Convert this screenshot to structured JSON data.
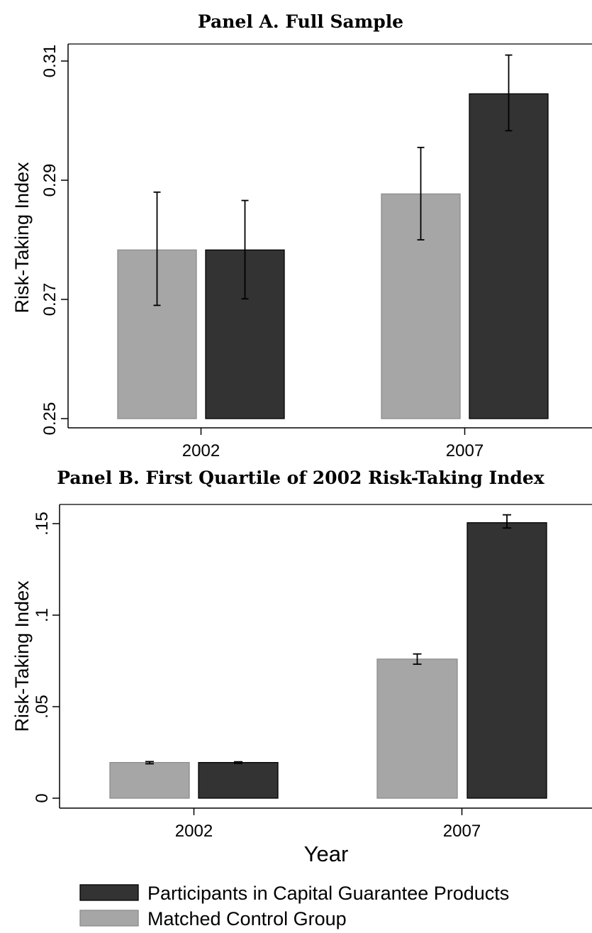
{
  "colors": {
    "participants": "#333333",
    "control": "#a6a6a6",
    "control_edge": "#8c8c8c",
    "axis": "#000000"
  },
  "legend": {
    "participants_label": "Participants in Capital Guarantee Products",
    "control_label": "Matched Control Group"
  },
  "chart_data": [
    {
      "type": "bar",
      "title": "Panel A. Full Sample",
      "ylabel": "Risk-Taking Index",
      "xlabel": "",
      "categories": [
        "2002",
        "2007"
      ],
      "ylim": [
        0.25,
        0.31
      ],
      "yticks": [
        0.25,
        0.27,
        0.29,
        0.31
      ],
      "ytick_labels": [
        "0.25",
        "0.27",
        "0.29",
        "0.31"
      ],
      "series": [
        {
          "key": "control",
          "values": [
            0.2783,
            0.2877
          ],
          "err_low": [
            0.269,
            0.28
          ],
          "err_high": [
            0.288,
            0.2955
          ]
        },
        {
          "key": "participants",
          "values": [
            0.2783,
            0.3045
          ],
          "err_low": [
            0.2701,
            0.2983
          ],
          "err_high": [
            0.2866,
            0.311
          ]
        }
      ]
    },
    {
      "type": "bar",
      "title": "Panel B. First Quartile of 2002 Risk-Taking Index",
      "ylabel": "Risk-Taking Index",
      "xlabel": "Year",
      "categories": [
        "2002",
        "2007"
      ],
      "ylim": [
        0,
        0.155
      ],
      "yticks": [
        0,
        0.05,
        0.1,
        0.15
      ],
      "ytick_labels": [
        "0",
        ".05",
        ".1",
        ".15"
      ],
      "series": [
        {
          "key": "control",
          "values": [
            0.0195,
            0.076
          ],
          "err_low": [
            0.0188,
            0.0732
          ],
          "err_high": [
            0.02,
            0.0788
          ]
        },
        {
          "key": "participants",
          "values": [
            0.0195,
            0.1505
          ],
          "err_low": [
            0.019,
            0.1476
          ],
          "err_high": [
            0.0199,
            0.1548
          ]
        }
      ]
    }
  ]
}
